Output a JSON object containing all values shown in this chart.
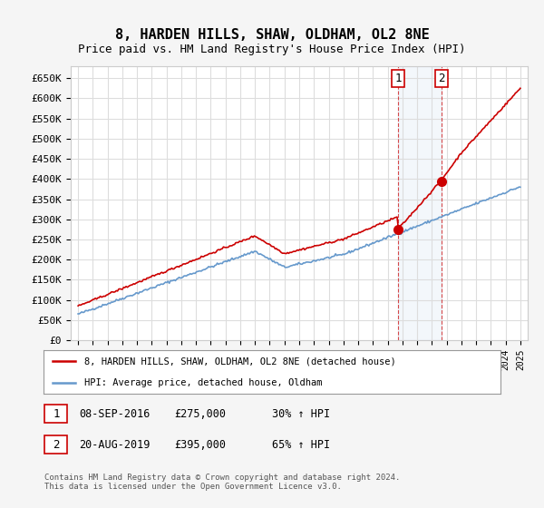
{
  "title": "8, HARDEN HILLS, SHAW, OLDHAM, OL2 8NE",
  "subtitle": "Price paid vs. HM Land Registry's House Price Index (HPI)",
  "ylabel_ticks": [
    "£0",
    "£50K",
    "£100K",
    "£150K",
    "£200K",
    "£250K",
    "£300K",
    "£350K",
    "£400K",
    "£450K",
    "£500K",
    "£550K",
    "£600K",
    "£650K"
  ],
  "ytick_values": [
    0,
    50000,
    100000,
    150000,
    200000,
    250000,
    300000,
    350000,
    400000,
    450000,
    500000,
    550000,
    600000,
    650000
  ],
  "legend_line1": "8, HARDEN HILLS, SHAW, OLDHAM, OL2 8NE (detached house)",
  "legend_line2": "HPI: Average price, detached house, Oldham",
  "line_color_red": "#cc0000",
  "line_color_blue": "#6699cc",
  "annotation1_label": "1",
  "annotation1_date": "08-SEP-2016",
  "annotation1_price": "£275,000",
  "annotation1_hpi": "30% ↑ HPI",
  "annotation2_label": "2",
  "annotation2_date": "20-AUG-2019",
  "annotation2_price": "£395,000",
  "annotation2_hpi": "65% ↑ HPI",
  "footer": "Contains HM Land Registry data © Crown copyright and database right 2024.\nThis data is licensed under the Open Government Licence v3.0.",
  "background_color": "#f5f5f5",
  "plot_background": "#ffffff",
  "grid_color": "#dddddd"
}
